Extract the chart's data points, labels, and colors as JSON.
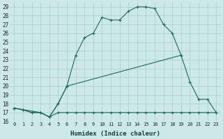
{
  "xlabel": "Humidex (Indice chaleur)",
  "background_color": "#cce8e8",
  "grid_color": "#aacccc",
  "line_color": "#1a6b5a",
  "xlim": [
    -0.5,
    23.5
  ],
  "ylim": [
    16,
    29.5
  ],
  "xticks": [
    0,
    1,
    2,
    3,
    4,
    5,
    6,
    7,
    8,
    9,
    10,
    11,
    12,
    13,
    14,
    15,
    16,
    17,
    18,
    19,
    20,
    21,
    22,
    23
  ],
  "yticks": [
    16,
    17,
    18,
    19,
    20,
    21,
    22,
    23,
    24,
    25,
    26,
    27,
    28,
    29
  ],
  "line1_x": [
    0,
    1,
    2,
    3,
    4,
    5,
    6,
    7,
    8,
    9,
    10,
    11,
    12,
    13,
    14,
    15,
    16,
    17,
    18,
    19,
    20,
    21,
    22,
    23
  ],
  "line1_y": [
    17.5,
    17.3,
    17.0,
    17.0,
    16.5,
    18.0,
    20.0,
    23.5,
    25.5,
    26.0,
    27.8,
    27.5,
    27.5,
    28.5,
    29.0,
    29.0,
    28.8,
    27.0,
    26.0,
    23.5,
    null,
    null,
    null,
    null
  ],
  "line2_x": [
    0,
    3,
    4,
    5,
    6,
    19,
    20,
    21,
    22,
    23
  ],
  "line2_y": [
    17.5,
    17.0,
    16.5,
    18.0,
    20.0,
    23.5,
    20.5,
    18.5,
    18.5,
    17.0
  ],
  "line3_x": [
    0,
    1,
    2,
    3,
    4,
    5,
    6,
    7,
    8,
    9,
    10,
    11,
    12,
    13,
    14,
    15,
    16,
    17,
    18,
    19,
    20,
    21,
    22,
    23
  ],
  "line3_y": [
    17.5,
    17.3,
    17.0,
    17.0,
    16.5,
    17.0,
    17.0,
    17.0,
    17.0,
    17.0,
    17.0,
    17.0,
    17.0,
    17.0,
    17.0,
    17.0,
    17.0,
    17.0,
    17.0,
    17.0,
    17.0,
    17.0,
    17.0,
    17.0
  ]
}
